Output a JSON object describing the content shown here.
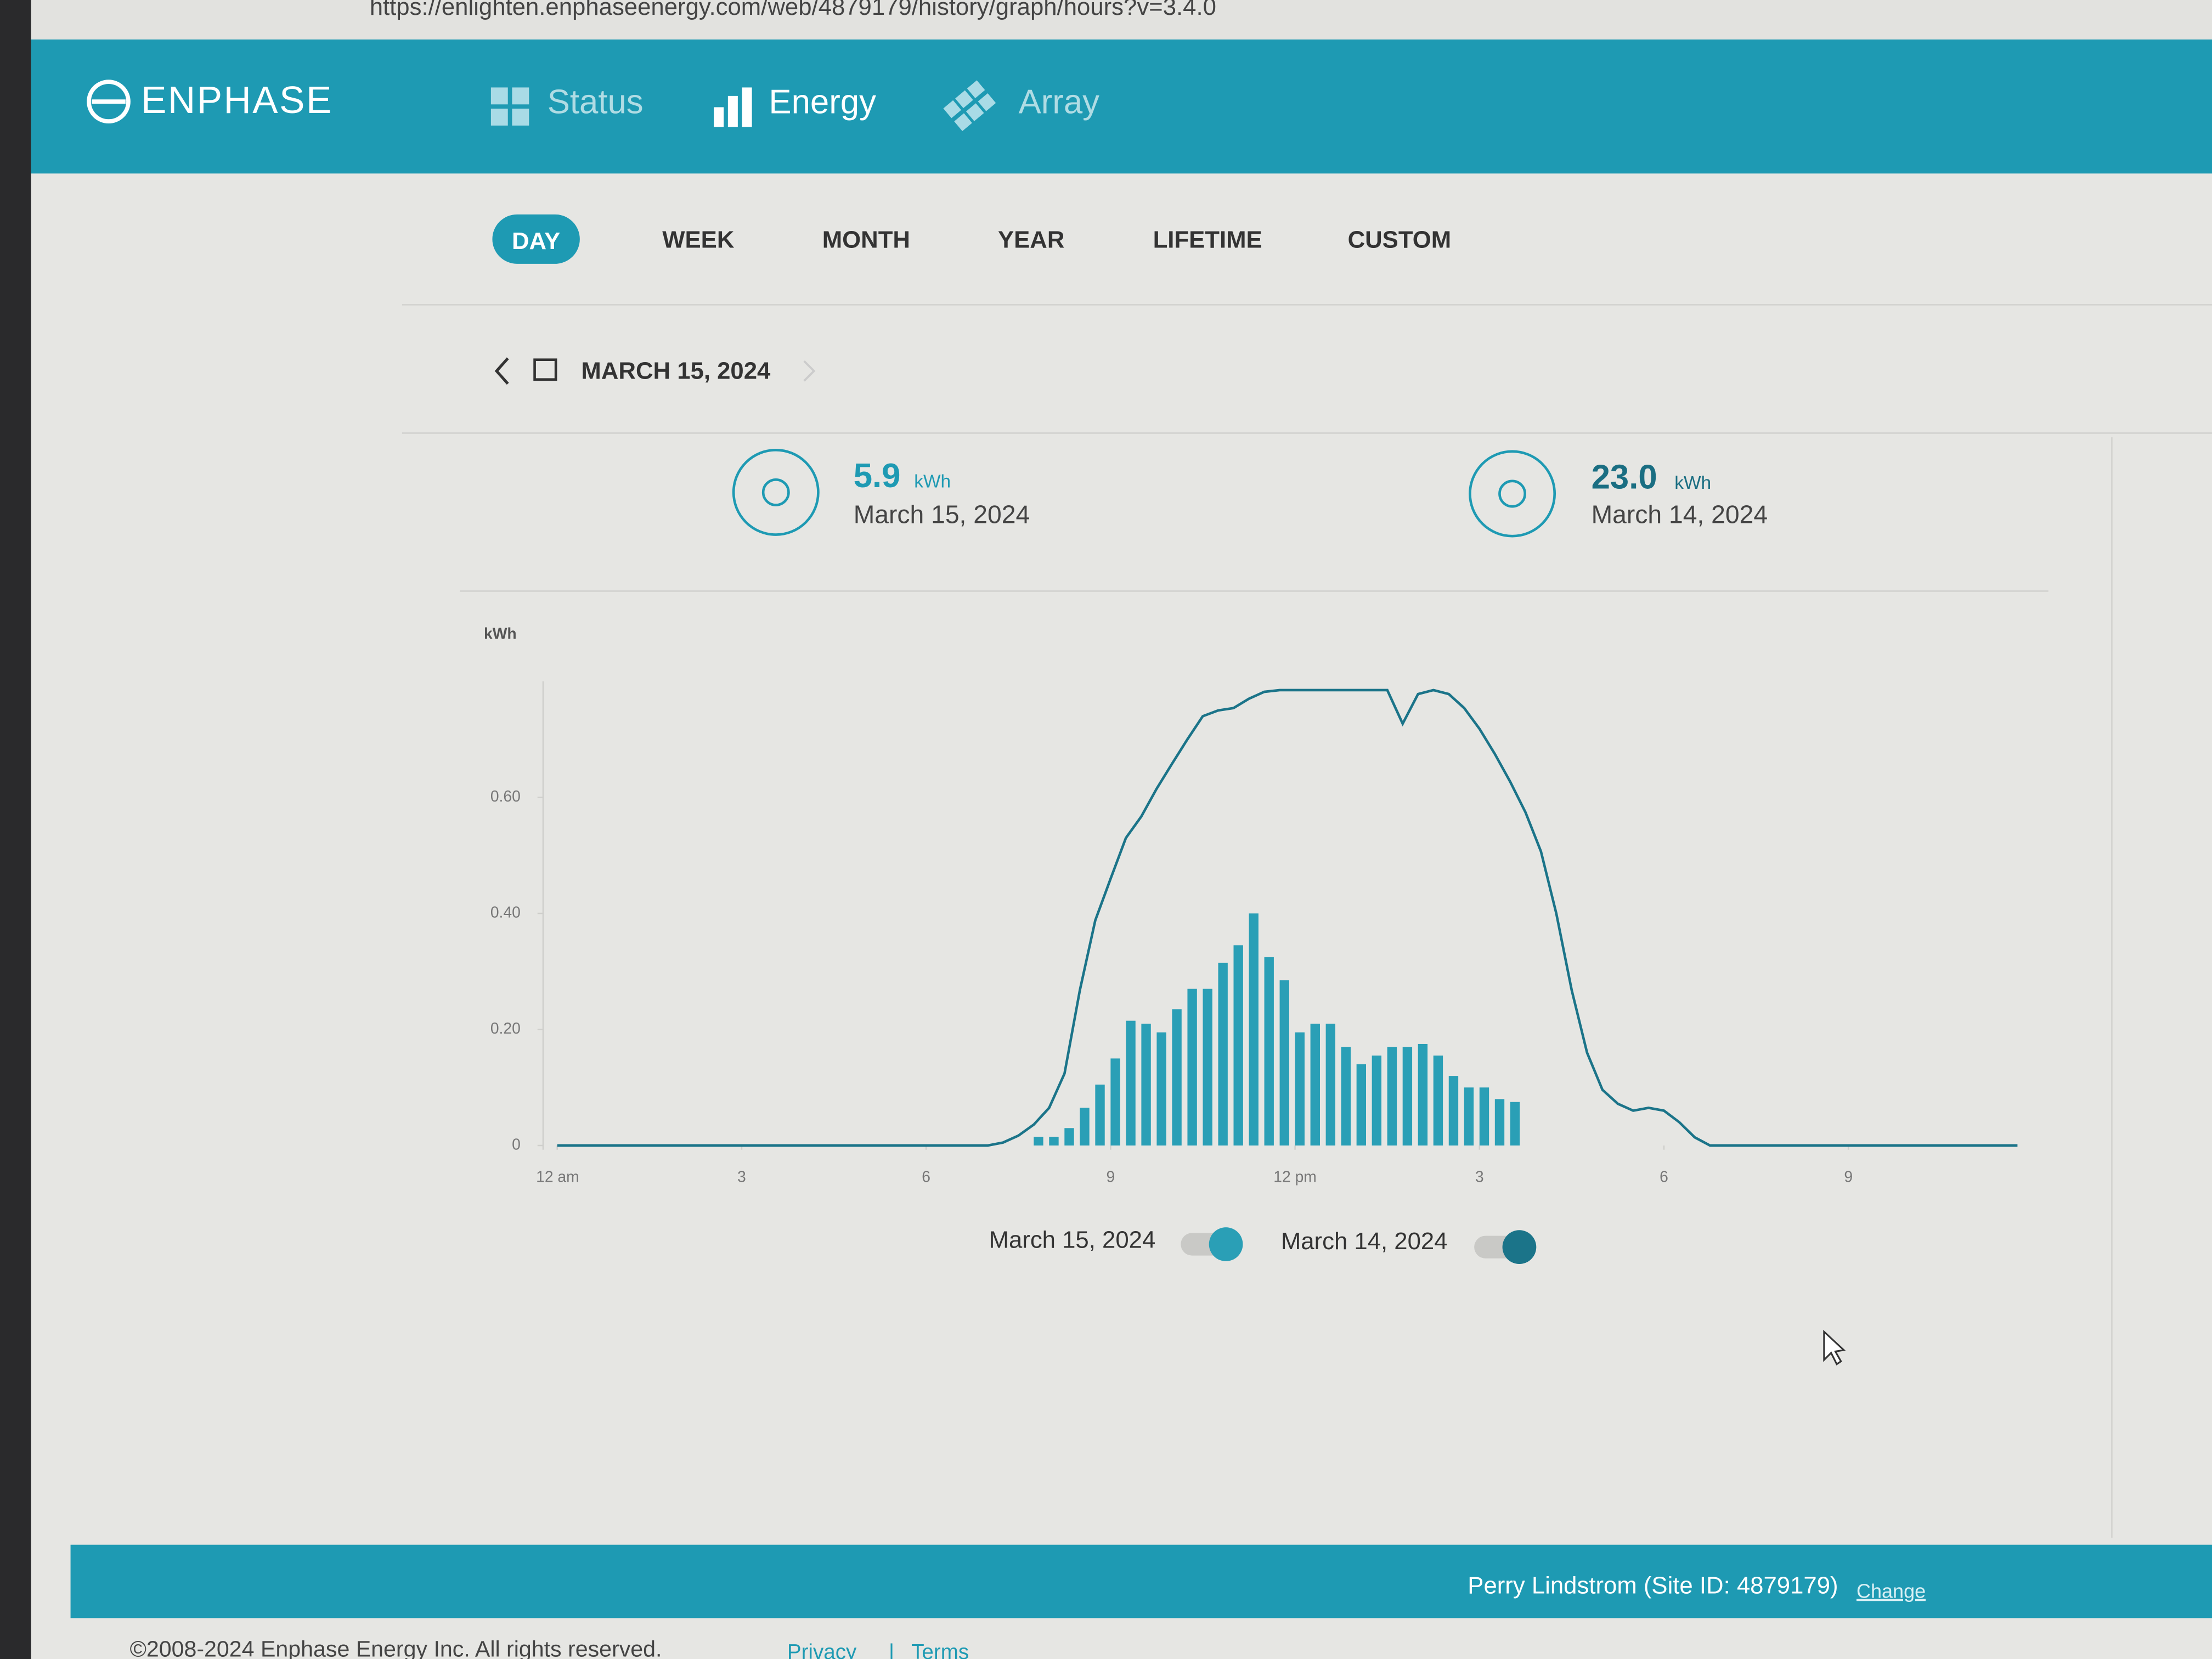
{
  "browser": {
    "url": "https://enlighten.enphaseenergy.com/web/4879179/history/graph/hours?v=3.4.0"
  },
  "header": {
    "logo": "ENPHASE",
    "nav": [
      "Status",
      "Energy",
      "Array"
    ]
  },
  "tabs": [
    "DAY",
    "WEEK",
    "MONTH",
    "YEAR",
    "LIFETIME",
    "CUSTOM"
  ],
  "date_nav": {
    "date": "MARCH 15, 2024"
  },
  "summary": [
    {
      "value": "5.9",
      "unit": "kWh",
      "date": "March 15, 2024"
    },
    {
      "value": "23.0",
      "unit": "kWh",
      "date": "March 14, 2024"
    }
  ],
  "chart_data": {
    "type": "bar",
    "y_label": "kWh",
    "xlim": [
      0,
      24
    ],
    "xticks": [
      {
        "value": 0,
        "label": "12 am"
      },
      3,
      6,
      9,
      {
        "value": 12,
        "label": "12 pm"
      },
      {
        "value": 15,
        "label": "3"
      },
      {
        "value": 18,
        "label": "6"
      },
      {
        "value": 21,
        "label": "9"
      }
    ],
    "ylim": [
      0,
      0.8
    ],
    "yticks": [
      0,
      {
        "value": 0.2,
        "label": "0.20"
      },
      {
        "value": 0.4,
        "label": "0.40"
      },
      {
        "value": 0.6,
        "label": "0.60"
      }
    ],
    "series": [
      {
        "name": "March 15, 2024",
        "type": "bar",
        "color": "#2a9fb6",
        "x": [
          7.75,
          8,
          8.25,
          8.5,
          8.75,
          9,
          9.25,
          9.5,
          9.75,
          10,
          10.25,
          10.5,
          10.75,
          11,
          11.25,
          11.5,
          11.75,
          12,
          12.25,
          12.5,
          12.75,
          13,
          13.25,
          13.5,
          13.75,
          14,
          14.25,
          14.5,
          14.75,
          15,
          15.25,
          15.5
        ],
        "values": [
          0.015,
          0.015,
          0.03,
          0.065,
          0.105,
          0.15,
          0.215,
          0.21,
          0.195,
          0.235,
          0.27,
          0.27,
          0.315,
          0.345,
          0.4,
          0.325,
          0.285,
          0.195,
          0.21,
          0.21,
          0.17,
          0.14,
          0.155,
          0.17,
          0.17,
          0.175,
          0.155,
          0.12,
          0.1,
          0.1,
          0.08,
          0.075
        ]
      },
      {
        "name": "March 14, 2024",
        "type": "line",
        "color": "#1b7489",
        "x": [
          0,
          7,
          7.25,
          7.5,
          7.75,
          8,
          8.25,
          8.5,
          8.75,
          9,
          9.25,
          9.5,
          9.75,
          10,
          10.25,
          10.5,
          10.75,
          11,
          11.25,
          11.5,
          11.75,
          12,
          12.25,
          12.5,
          12.75,
          13,
          13.25,
          13.5,
          13.75,
          14,
          14.25,
          14.5,
          14.75,
          15,
          15.25,
          15.5,
          15.75,
          16,
          16.25,
          16.5,
          16.75,
          17,
          17.25,
          17.5,
          17.75,
          18,
          18.25,
          18.5,
          18.75,
          23.75
        ],
        "values": [
          0,
          0,
          0.005,
          0.017,
          0.036,
          0.065,
          0.124,
          0.268,
          0.388,
          0.46,
          0.53,
          0.567,
          0.615,
          0.658,
          0.7,
          0.74,
          0.75,
          0.754,
          0.77,
          0.782,
          0.785,
          0.785,
          0.785,
          0.785,
          0.785,
          0.785,
          0.785,
          0.785,
          0.727,
          0.778,
          0.785,
          0.778,
          0.754,
          0.718,
          0.675,
          0.627,
          0.574,
          0.507,
          0.4,
          0.268,
          0.16,
          0.096,
          0.072,
          0.06,
          0.065,
          0.06,
          0.04,
          0.014,
          0,
          0
        ]
      }
    ]
  },
  "footer": {
    "user": "Perry Lindstrom (Site ID: 4879179)",
    "change": "Change",
    "copyright": "©2008-2024 Enphase Energy Inc. All rights reserved.",
    "links": [
      "Privacy",
      "|",
      "Terms"
    ]
  }
}
